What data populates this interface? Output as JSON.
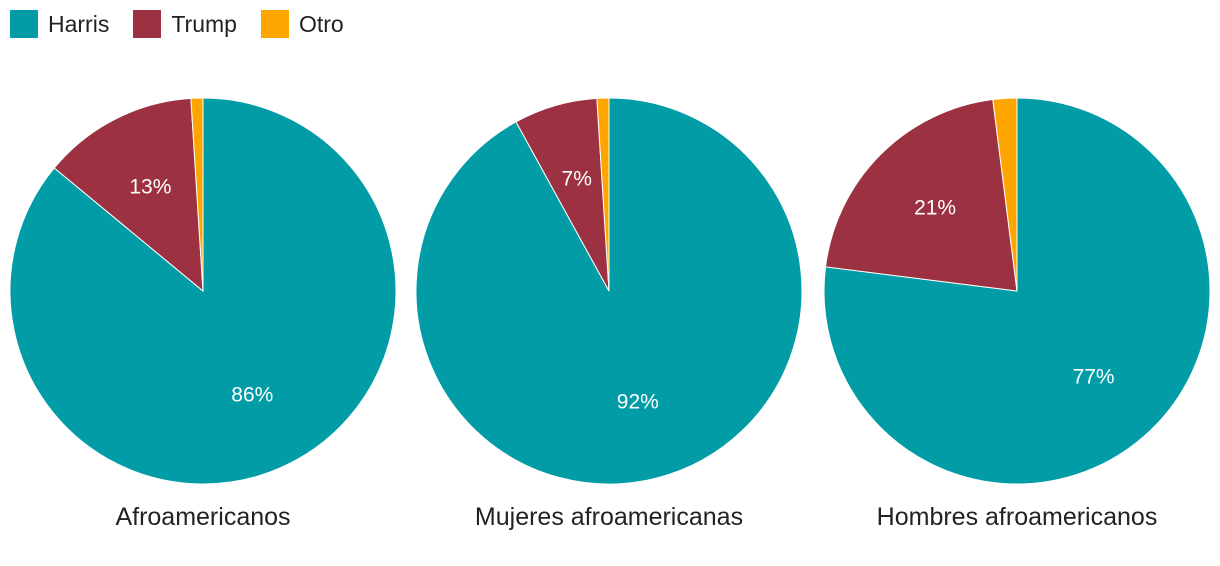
{
  "legend": {
    "items": [
      {
        "label": "Harris",
        "color": "#019ca6"
      },
      {
        "label": "Trump",
        "color": "#9c3241"
      },
      {
        "label": "Otro",
        "color": "#ffa500"
      }
    ]
  },
  "chart_data": [
    {
      "type": "pie",
      "title": "Afroamericanos",
      "start": "12 o'clock, clockwise",
      "slices": [
        {
          "name": "Harris",
          "value": 86,
          "label": "86%",
          "color": "#019ca6"
        },
        {
          "name": "Trump",
          "value": 13,
          "label": "13%",
          "color": "#9c3241"
        },
        {
          "name": "Otro",
          "value": 1,
          "label": "",
          "color": "#ffa500"
        }
      ]
    },
    {
      "type": "pie",
      "title": "Mujeres afroamericanas",
      "start": "12 o'clock, clockwise",
      "slices": [
        {
          "name": "Harris",
          "value": 92,
          "label": "92%",
          "color": "#019ca6"
        },
        {
          "name": "Trump",
          "value": 7,
          "label": "7%",
          "color": "#9c3241"
        },
        {
          "name": "Otro",
          "value": 1,
          "label": "",
          "color": "#ffa500"
        }
      ]
    },
    {
      "type": "pie",
      "title": "Hombres afroamericanos",
      "start": "12 o'clock, clockwise",
      "slices": [
        {
          "name": "Harris",
          "value": 77,
          "label": "77%",
          "color": "#019ca6"
        },
        {
          "name": "Trump",
          "value": 21,
          "label": "21%",
          "color": "#9c3241"
        },
        {
          "name": "Otro",
          "value": 2,
          "label": "",
          "color": "#ffa500"
        }
      ]
    }
  ]
}
